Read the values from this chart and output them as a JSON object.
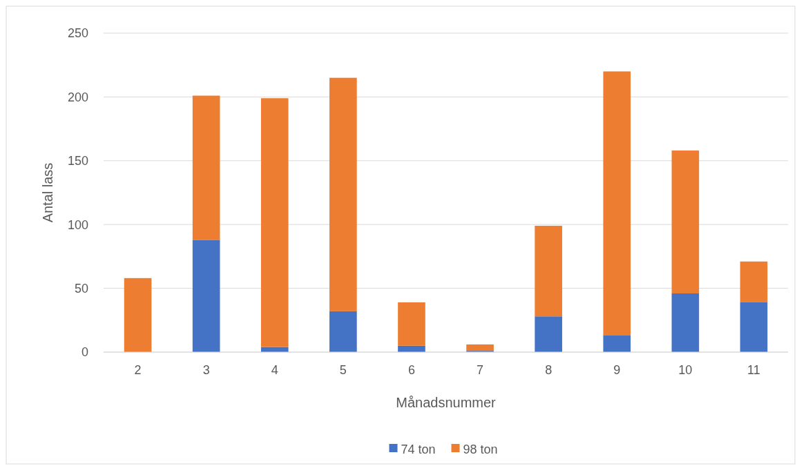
{
  "chart_data": {
    "type": "bar",
    "stacked": true,
    "xlabel": "Månadsnummer",
    "ylabel": "Antal lass",
    "categories": [
      "2",
      "3",
      "4",
      "5",
      "6",
      "7",
      "8",
      "9",
      "10",
      "11"
    ],
    "series": [
      {
        "name": "74 ton",
        "color": "#4472c4",
        "values": [
          0,
          88,
          4,
          32,
          5,
          1,
          28,
          13,
          46,
          39
        ]
      },
      {
        "name": "98 ton",
        "color": "#ed7d31",
        "values": [
          58,
          113,
          195,
          183,
          34,
          5,
          71,
          207,
          112,
          32
        ]
      }
    ],
    "ylim": [
      0,
      250
    ],
    "yticks": [
      0,
      50,
      100,
      150,
      200,
      250
    ],
    "grid": "y",
    "legend": "bottom"
  }
}
